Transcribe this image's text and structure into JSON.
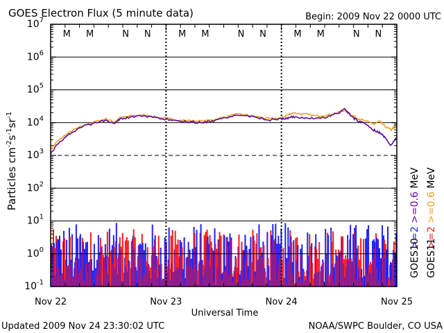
{
  "title": "GOES Electron Flux (5 minute data)",
  "begin": "Begin: 2009 Nov 22 0000 UTC",
  "updated": "Updated 2009 Nov 24 23:30:02 UTC",
  "source": "NOAA/SWPC Boulder, CO USA",
  "xlabel": "Universal Time",
  "ylabel": {
    "base": "Particles cm",
    "e1": "-2",
    "mid1": "s",
    "e2": "-1",
    "mid2": "sr",
    "e3": "-1"
  },
  "top_markers": [
    {
      "label": "M",
      "color": "#1f1fff"
    },
    {
      "label": "M",
      "color": "#e8221b"
    },
    {
      "label": "N",
      "color": "#1f1fff"
    },
    {
      "label": "N",
      "color": "#e8221b"
    },
    {
      "label": "M",
      "color": "#1f1fff"
    },
    {
      "label": "M",
      "color": "#e8221b"
    },
    {
      "label": "N",
      "color": "#1f1fff"
    },
    {
      "label": "N",
      "color": "#e8221b"
    },
    {
      "label": "M",
      "color": "#1f1fff"
    },
    {
      "label": "M",
      "color": "#e8221b"
    },
    {
      "label": "N",
      "color": "#1f1fff"
    },
    {
      "label": "N",
      "color": "#e8221b"
    }
  ],
  "right_legend": {
    "col1": [
      {
        "text": ">=2",
        "color": "#1f1fff"
      },
      {
        "text": ">=0.6",
        "color": "#6a0aa0"
      },
      {
        "text": "MeV",
        "color": "#000000"
      }
    ],
    "col2": [
      {
        "text": ">=2",
        "color": "#e8221b"
      },
      {
        "text": ">=0.6",
        "color": "#f0a020"
      },
      {
        "text": "MeV",
        "color": "#000000"
      }
    ],
    "sat1": "GOES10",
    "sat2": "GOES11"
  },
  "colors": {
    "goes10_2mev": "#1f1fff",
    "goes11_2mev": "#ff1a1a",
    "goes10_06mev": "#5b0a9a",
    "goes11_06mev": "#f0a020"
  },
  "chart_data": {
    "type": "line",
    "x_unit": "days since 2009 Nov 22 0000 UTC",
    "x_range": [
      0,
      3
    ],
    "x_ticks": [
      {
        "value": 0,
        "label": "Nov 22"
      },
      {
        "value": 1,
        "label": "Nov 23"
      },
      {
        "value": 2,
        "label": "Nov 24"
      },
      {
        "value": 3,
        "label": "Nov 25"
      }
    ],
    "y_scale": "log",
    "y_range": [
      0.1,
      10000000
    ],
    "y_ticks": [
      {
        "value": 0.1,
        "base": "10",
        "exp": "-1"
      },
      {
        "value": 1,
        "base": "10",
        "exp": "0"
      },
      {
        "value": 10,
        "base": "10",
        "exp": "1"
      },
      {
        "value": 100,
        "base": "10",
        "exp": "2"
      },
      {
        "value": 1000,
        "base": "10",
        "exp": "3"
      },
      {
        "value": 10000,
        "base": "10",
        "exp": "4"
      },
      {
        "value": 100000,
        "base": "10",
        "exp": "5"
      },
      {
        "value": 1000000,
        "base": "10",
        "exp": "6"
      },
      {
        "value": 10000000,
        "base": "10",
        "exp": "7"
      }
    ],
    "series": [
      {
        "name": "GOES11 >=0.6 MeV",
        "color": "#f0a020",
        "x": [
          0,
          0.05,
          0.12,
          0.2,
          0.3,
          0.4,
          0.48,
          0.55,
          0.6,
          0.7,
          0.8,
          0.9,
          1.0,
          1.1,
          1.2,
          1.3,
          1.4,
          1.5,
          1.6,
          1.7,
          1.8,
          1.9,
          2.0,
          2.05,
          2.1,
          2.2,
          2.3,
          2.4,
          2.5,
          2.55,
          2.6,
          2.65,
          2.7,
          2.8,
          2.85,
          2.9,
          2.95,
          3.0
        ],
        "y": [
          1500,
          2500,
          4000,
          6000,
          8500,
          11000,
          13000,
          10500,
          14000,
          16000,
          17000,
          15000,
          13500,
          12000,
          11500,
          11000,
          12000,
          14500,
          18000,
          17000,
          15000,
          13000,
          14000,
          17000,
          20000,
          18000,
          16000,
          17000,
          21000,
          24000,
          18000,
          14000,
          12000,
          9000,
          11000,
          7500,
          6000,
          9000
        ]
      },
      {
        "name": "GOES10 >=0.6 MeV",
        "color": "#5b0a9a",
        "x": [
          0,
          0.05,
          0.12,
          0.2,
          0.3,
          0.4,
          0.48,
          0.55,
          0.6,
          0.7,
          0.8,
          0.9,
          1.0,
          1.1,
          1.2,
          1.3,
          1.4,
          1.5,
          1.6,
          1.7,
          1.8,
          1.9,
          2.0,
          2.05,
          2.1,
          2.2,
          2.3,
          2.4,
          2.5,
          2.55,
          2.6,
          2.65,
          2.7,
          2.8,
          2.85,
          2.9,
          2.95,
          3.0
        ],
        "y": [
          1100,
          2000,
          3500,
          5500,
          8000,
          10000,
          12000,
          9500,
          13000,
          15000,
          16000,
          14000,
          12500,
          11000,
          10500,
          10000,
          11000,
          13500,
          17000,
          16000,
          14000,
          12000,
          13000,
          13500,
          15000,
          14000,
          13000,
          15000,
          20000,
          26000,
          16000,
          12000,
          10000,
          6000,
          5000,
          3500,
          2000,
          3500
        ]
      }
    ]
  }
}
